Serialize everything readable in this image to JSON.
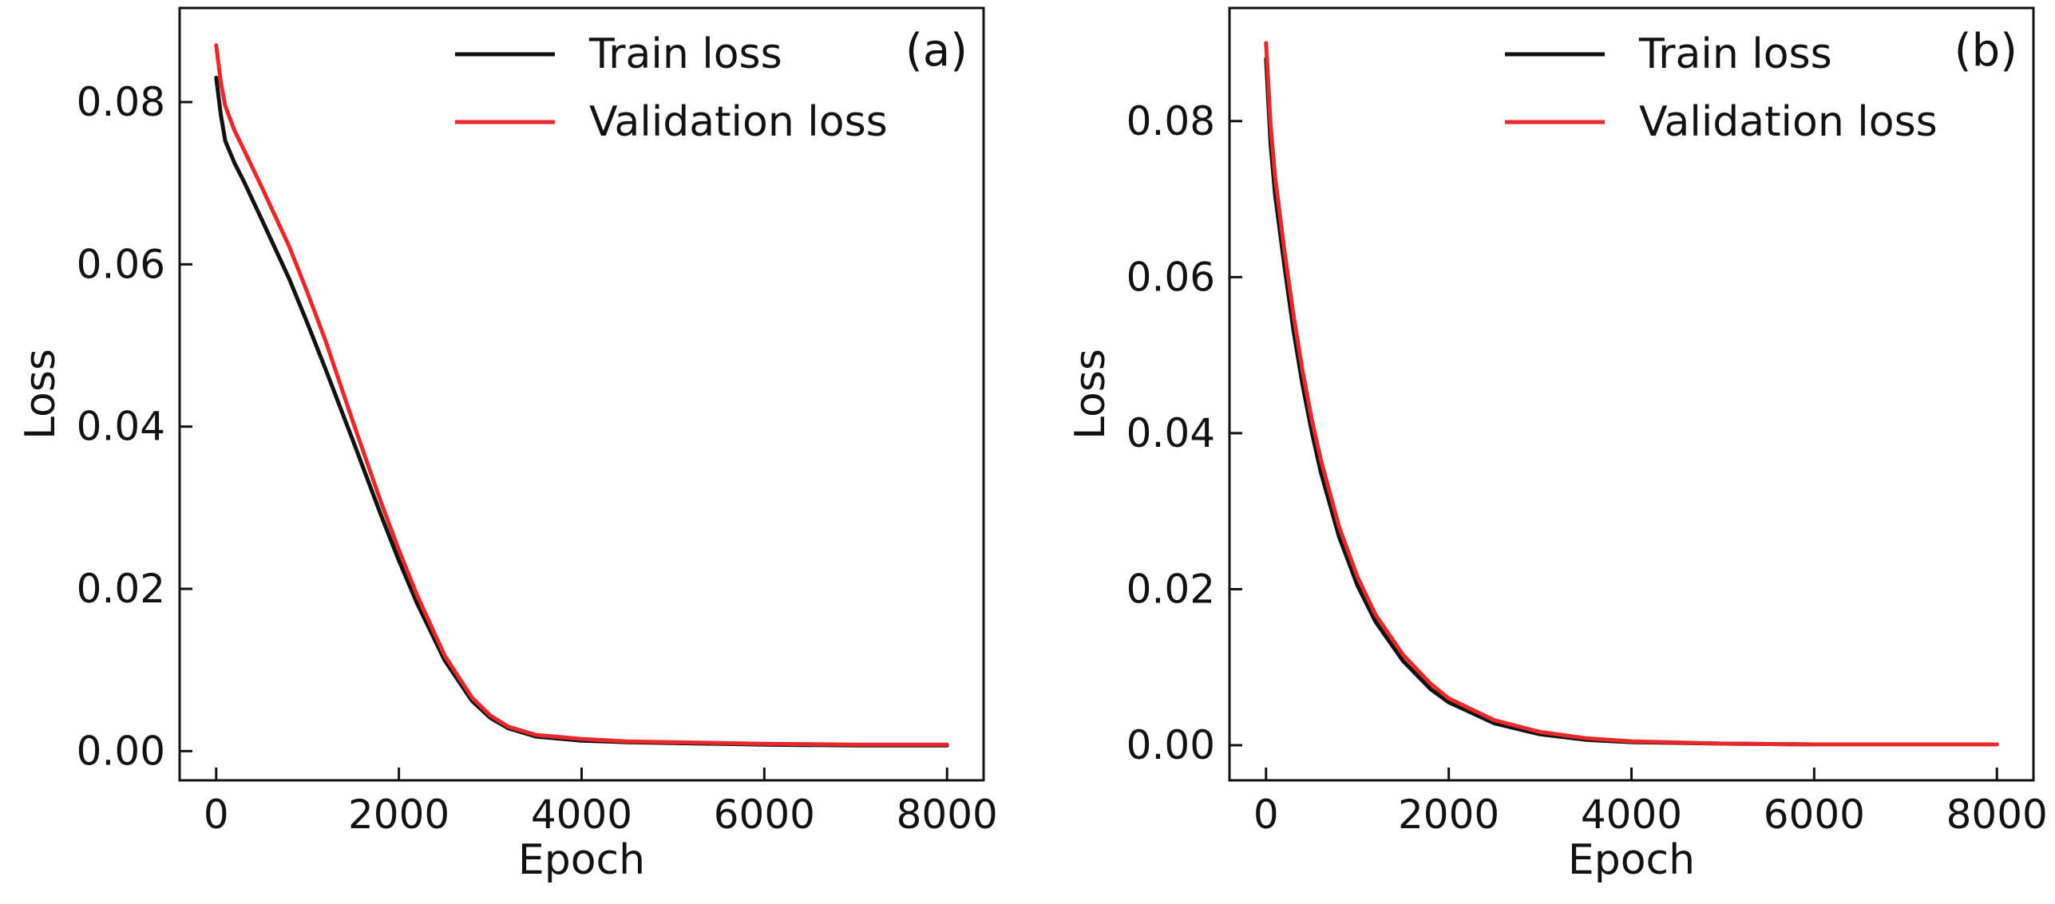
{
  "chart_data": [
    {
      "type": "line",
      "panel_label": "(a)",
      "xlabel": "Epoch",
      "ylabel": "Loss",
      "xlim": [
        -400,
        8400
      ],
      "ylim": [
        -0.0036,
        0.0916
      ],
      "xticks": [
        0,
        2000,
        4000,
        6000,
        8000
      ],
      "xtick_labels": [
        "0",
        "2000",
        "4000",
        "6000",
        "8000"
      ],
      "yticks": [
        0.0,
        0.02,
        0.04,
        0.06,
        0.08
      ],
      "ytick_labels": [
        "0.00",
        "0.02",
        "0.04",
        "0.06",
        "0.08"
      ],
      "grid": false,
      "legend_position": "top-right",
      "legend": [
        "Train loss",
        "Validation loss"
      ],
      "x": [
        0,
        50,
        100,
        200,
        300,
        500,
        800,
        1000,
        1200,
        1500,
        1800,
        2000,
        2200,
        2500,
        2800,
        3000,
        3200,
        3500,
        4000,
        4500,
        5000,
        6000,
        7000,
        8000
      ],
      "series": [
        {
          "name": "Train loss",
          "color": "#111111",
          "values": [
            0.083,
            0.0785,
            0.0752,
            0.0725,
            0.0703,
            0.0655,
            0.0582,
            0.0527,
            0.047,
            0.0382,
            0.0292,
            0.0235,
            0.0182,
            0.0112,
            0.0062,
            0.0041,
            0.0028,
            0.0018,
            0.0013,
            0.0011,
            0.001,
            0.0008,
            0.0007,
            0.0007
          ]
        },
        {
          "name": "Validation loss",
          "color": "#e8282b",
          "values": [
            0.087,
            0.0825,
            0.0795,
            0.0765,
            0.0742,
            0.0695,
            0.0622,
            0.0565,
            0.0505,
            0.0405,
            0.0308,
            0.0248,
            0.0192,
            0.0118,
            0.0066,
            0.0044,
            0.003,
            0.002,
            0.0015,
            0.0012,
            0.0011,
            0.0009,
            0.0008,
            0.0008
          ]
        }
      ]
    },
    {
      "type": "line",
      "panel_label": "(b)",
      "xlabel": "Epoch",
      "ylabel": "Loss",
      "xlim": [
        -400,
        8400
      ],
      "ylim": [
        -0.0045,
        0.0945
      ],
      "xticks": [
        0,
        2000,
        4000,
        6000,
        8000
      ],
      "xtick_labels": [
        "0",
        "2000",
        "4000",
        "6000",
        "8000"
      ],
      "yticks": [
        0.0,
        0.02,
        0.04,
        0.06,
        0.08
      ],
      "ytick_labels": [
        "0.00",
        "0.02",
        "0.04",
        "0.06",
        "0.08"
      ],
      "grid": false,
      "legend_position": "top-right",
      "legend": [
        "Train loss",
        "Validation loss"
      ],
      "x": [
        0,
        50,
        100,
        200,
        300,
        400,
        500,
        600,
        800,
        1000,
        1200,
        1500,
        1800,
        2000,
        2500,
        3000,
        3500,
        4000,
        5000,
        6000,
        7000,
        8000
      ],
      "series": [
        {
          "name": "Train loss",
          "color": "#111111",
          "values": [
            0.088,
            0.077,
            0.0705,
            0.0615,
            0.0532,
            0.0462,
            0.0402,
            0.035,
            0.0267,
            0.0205,
            0.0158,
            0.0108,
            0.0072,
            0.0055,
            0.0028,
            0.0014,
            0.0007,
            0.0004,
            0.0002,
            0.0001,
            0.0001,
            0.0001
          ]
        },
        {
          "name": "Validation loss",
          "color": "#e8282b",
          "values": [
            0.09,
            0.0795,
            0.0728,
            0.0635,
            0.0552,
            0.048,
            0.0418,
            0.0366,
            0.028,
            0.0216,
            0.0167,
            0.0116,
            0.0079,
            0.006,
            0.0032,
            0.0017,
            0.0009,
            0.0005,
            0.0002,
            0.0001,
            0.0001,
            0.0001
          ]
        }
      ]
    }
  ]
}
